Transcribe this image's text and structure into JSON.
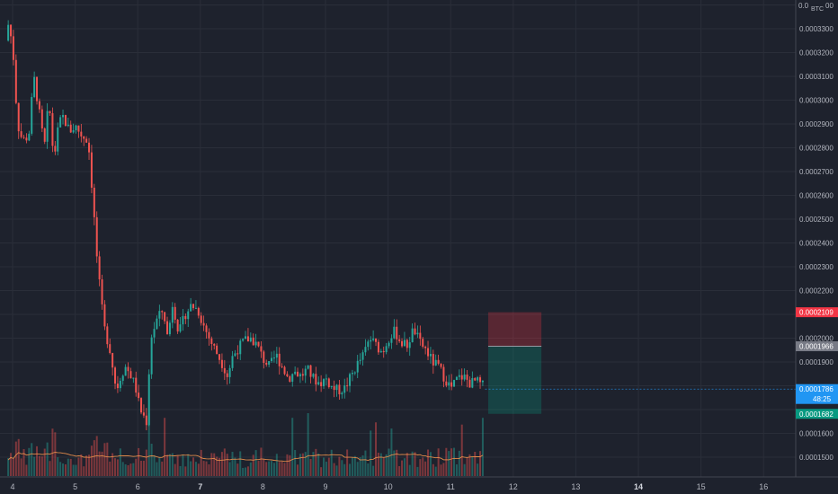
{
  "chart_data": {
    "type": "candlestick",
    "currency": "BTC",
    "y_axis": {
      "min": 0.000145,
      "max": 0.000343,
      "ticks": [
        "0.0003300",
        "0.0003200",
        "0.0003100",
        "0.0003000",
        "0.0002900",
        "0.0002800",
        "0.0002700",
        "0.0002600",
        "0.0002500",
        "0.0002400",
        "0.0002300",
        "0.0002200",
        "0.0002000",
        "0.0001900",
        "0.0001600",
        "0.0001500"
      ],
      "top_partial_label": "0.0",
      "top_partial_label_right": "00"
    },
    "x_axis": {
      "labels": [
        {
          "text": "4",
          "bold": false
        },
        {
          "text": "5",
          "bold": false
        },
        {
          "text": "6",
          "bold": false
        },
        {
          "text": "7",
          "bold": true
        },
        {
          "text": "8",
          "bold": false
        },
        {
          "text": "9",
          "bold": false
        },
        {
          "text": "10",
          "bold": false
        },
        {
          "text": "11",
          "bold": false
        },
        {
          "text": "12",
          "bold": false
        },
        {
          "text": "13",
          "bold": false
        },
        {
          "text": "14",
          "bold": true
        },
        {
          "text": "15",
          "bold": false
        },
        {
          "text": "16",
          "bold": false
        }
      ]
    },
    "price_tags": {
      "stop_loss": {
        "value": 0.0002109,
        "label": "0.0002109",
        "color": "#f23645"
      },
      "entry": {
        "value": 0.0001966,
        "label": "0.0001966",
        "color": "#787b86"
      },
      "current": {
        "value": 0.0001786,
        "label": "0.0001786",
        "countdown": "48:25",
        "color": "#2196f3"
      },
      "take_profit": {
        "value": 0.0001682,
        "label": "0.0001682",
        "color": "#089981"
      }
    },
    "position": {
      "type": "short",
      "entry": 0.0001966,
      "stop": 0.0002109,
      "target": 0.0001682,
      "start_day": 11.6,
      "end_day": 12.45
    },
    "colors": {
      "up": "#26a69a",
      "down": "#ef5350",
      "up_vol": "#26a69a",
      "down_vol": "#ef5350",
      "ma": "#e08a4a"
    },
    "price_path": [
      [
        3.93,
        0.000325
      ],
      [
        3.98,
        0.000333
      ],
      [
        4.05,
        0.00032
      ],
      [
        4.12,
        0.00029
      ],
      [
        4.2,
        0.000283
      ],
      [
        4.3,
        0.000285
      ],
      [
        4.38,
        0.00031
      ],
      [
        4.45,
        0.000298
      ],
      [
        4.55,
        0.00028
      ],
      [
        4.62,
        0.0003
      ],
      [
        4.7,
        0.000275
      ],
      [
        4.78,
        0.00029
      ],
      [
        4.85,
        0.000293
      ],
      [
        4.95,
        0.000287
      ],
      [
        5.05,
        0.000289
      ],
      [
        5.15,
        0.000285
      ],
      [
        5.25,
        0.000283
      ],
      [
        5.32,
        0.00026
      ],
      [
        5.4,
        0.00023
      ],
      [
        5.5,
        0.000205
      ],
      [
        5.6,
        0.000195
      ],
      [
        5.7,
        0.000178
      ],
      [
        5.78,
        0.000185
      ],
      [
        5.85,
        0.000188
      ],
      [
        5.92,
        0.000185
      ],
      [
        6.0,
        0.00018
      ],
      [
        6.08,
        0.00017
      ],
      [
        6.18,
        0.000165
      ],
      [
        6.25,
        0.0002
      ],
      [
        6.35,
        0.000208
      ],
      [
        6.45,
        0.000212
      ],
      [
        6.52,
        0.0002
      ],
      [
        6.6,
        0.000215
      ],
      [
        6.7,
        0.000202
      ],
      [
        6.8,
        0.00021
      ],
      [
        6.9,
        0.000214
      ],
      [
        7.0,
        0.000212
      ],
      [
        7.1,
        0.000205
      ],
      [
        7.2,
        0.000199
      ],
      [
        7.3,
        0.000194
      ],
      [
        7.4,
        0.000189
      ],
      [
        7.48,
        0.000184
      ],
      [
        7.55,
        0.000192
      ],
      [
        7.65,
        0.000196
      ],
      [
        7.75,
        0.000199
      ],
      [
        7.85,
        0.0002
      ],
      [
        7.95,
        0.000197
      ],
      [
        8.05,
        0.000191
      ],
      [
        8.15,
        0.000188
      ],
      [
        8.25,
        0.000193
      ],
      [
        8.35,
        0.000188
      ],
      [
        8.45,
        0.000183
      ],
      [
        8.55,
        0.000186
      ],
      [
        8.65,
        0.000184
      ],
      [
        8.75,
        0.000187
      ],
      [
        8.85,
        0.000183
      ],
      [
        8.95,
        0.000181
      ],
      [
        9.05,
        0.000183
      ],
      [
        9.15,
        0.000179
      ],
      [
        9.25,
        0.000178
      ],
      [
        9.35,
        0.000179
      ],
      [
        9.45,
        0.000184
      ],
      [
        9.55,
        0.000189
      ],
      [
        9.65,
        0.000193
      ],
      [
        9.75,
        0.0002
      ],
      [
        9.85,
        0.000197
      ],
      [
        9.95,
        0.000194
      ],
      [
        10.05,
        0.0002
      ],
      [
        10.15,
        0.000203
      ],
      [
        10.25,
        0.000198
      ],
      [
        10.35,
        0.000197
      ],
      [
        10.45,
        0.000204
      ],
      [
        10.55,
        0.000198
      ],
      [
        10.65,
        0.000195
      ],
      [
        10.75,
        0.00019
      ],
      [
        10.85,
        0.000188
      ],
      [
        10.95,
        0.000183
      ],
      [
        11.05,
        0.000179
      ],
      [
        11.15,
        0.000183
      ],
      [
        11.25,
        0.000184
      ],
      [
        11.35,
        0.000181
      ],
      [
        11.45,
        0.000182
      ],
      [
        11.55,
        0.00018
      ]
    ]
  }
}
